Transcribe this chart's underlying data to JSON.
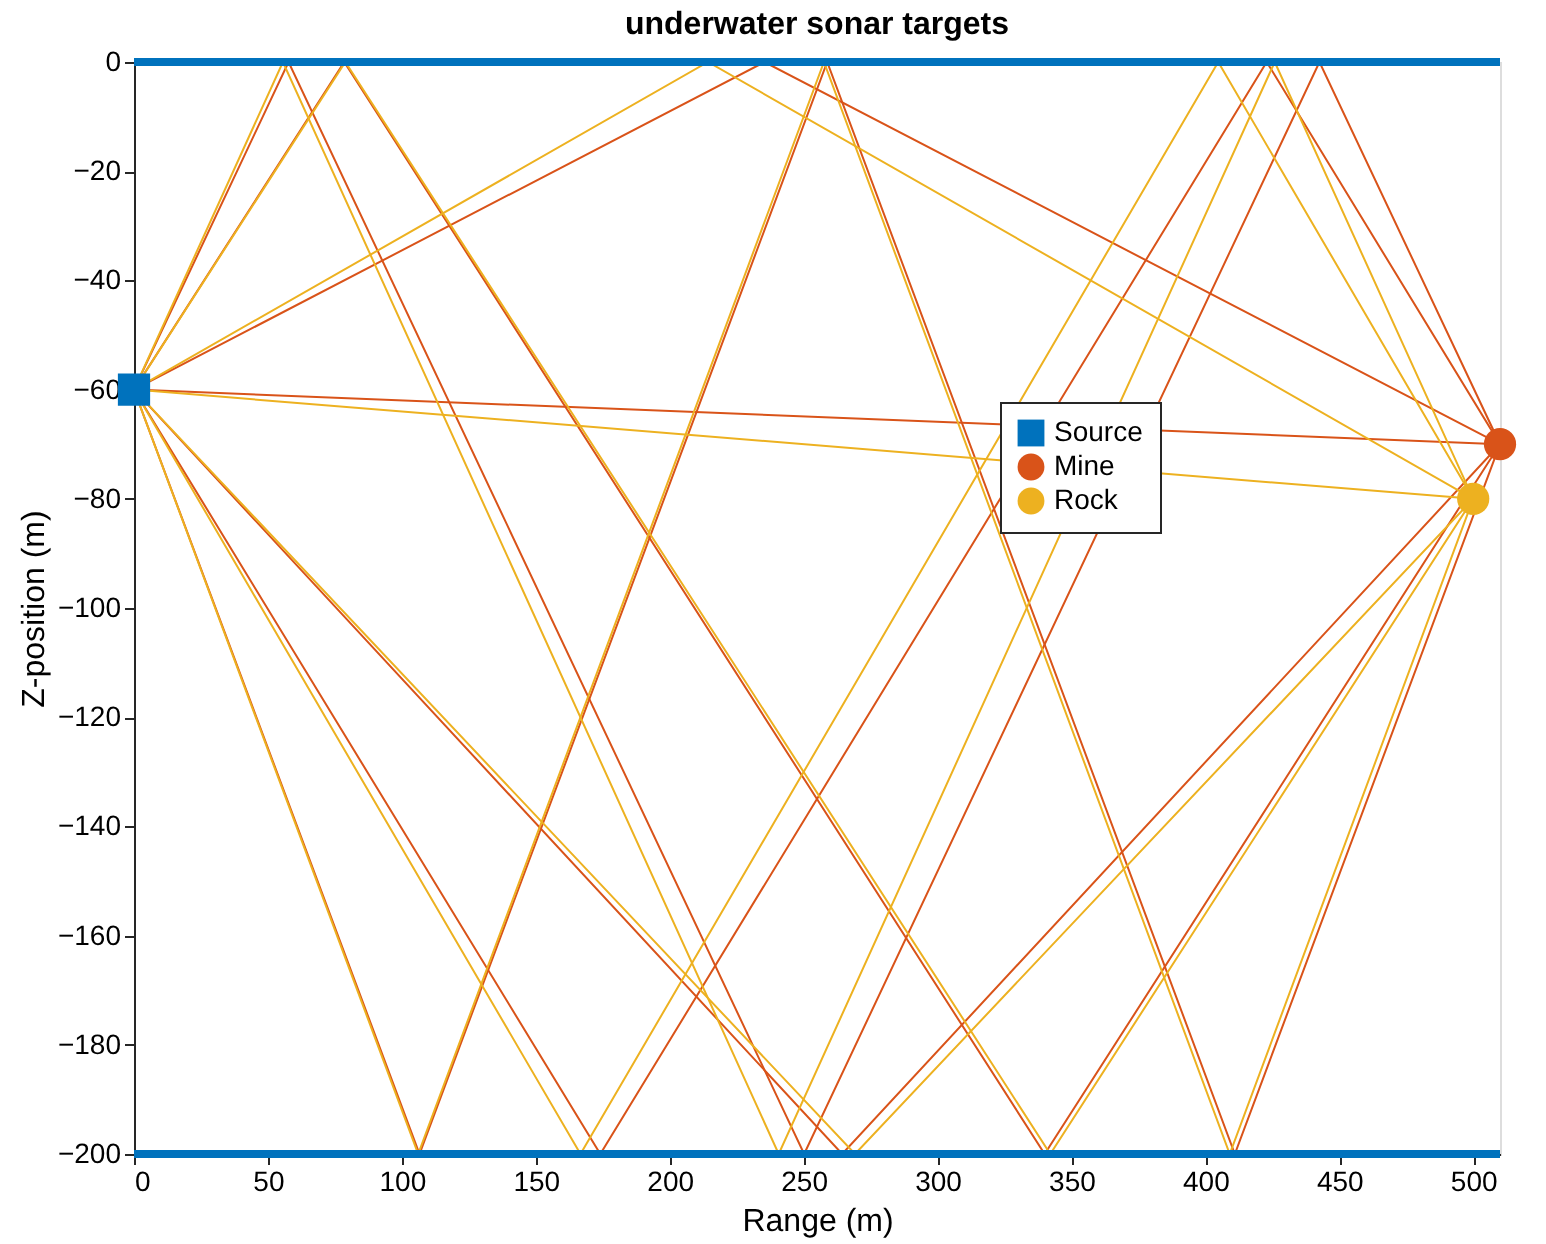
{
  "chart_data": {
    "type": "line",
    "title": "underwater sonar targets",
    "xlabel": "Range (m)",
    "ylabel": "Z-position (m)",
    "xlim": [
      0,
      510
    ],
    "ylim": [
      -200,
      0
    ],
    "xticks": [
      0,
      50,
      100,
      150,
      200,
      250,
      300,
      350,
      400,
      450,
      500
    ],
    "yticks": [
      -200,
      -180,
      -160,
      -140,
      -120,
      -100,
      -80,
      -60,
      -40,
      -20,
      0
    ],
    "grid": false,
    "legend": "top right",
    "line_style": "solid",
    "ref_lines": [
      {
        "axis": "y",
        "value": 0,
        "color": "#0072bd"
      },
      {
        "axis": "y",
        "value": -200,
        "color": "#0072bd"
      }
    ],
    "series": [
      {
        "color": "#d95319",
        "x": [
          0,
          510
        ],
        "values": [
          -60,
          -70
        ]
      },
      {
        "color": "#d95319",
        "x": [
          0,
          235.4,
          510
        ],
        "values": [
          -60,
          0,
          -70
        ]
      },
      {
        "color": "#d95319",
        "x": [
          0,
          264.4,
          510
        ],
        "values": [
          -60,
          -200,
          -70
        ]
      },
      {
        "color": "#d95319",
        "x": [
          0,
          78.5,
          340,
          510
        ],
        "values": [
          -60,
          0,
          -200,
          -70
        ]
      },
      {
        "color": "#d95319",
        "x": [
          0,
          174.1,
          422.9,
          510
        ],
        "values": [
          -60,
          -200,
          0,
          -70
        ]
      },
      {
        "color": "#d95319",
        "x": [
          0,
          57.7,
          250.2,
          442.6,
          510
        ],
        "values": [
          -60,
          0,
          -200,
          0,
          -70
        ]
      },
      {
        "color": "#d95319",
        "x": [
          0,
          106.6,
          258.8,
          411,
          510
        ],
        "values": [
          -60,
          -200,
          0,
          -200,
          -70
        ]
      },
      {
        "color": "#edb120",
        "x": [
          0,
          500
        ],
        "values": [
          -60,
          -80
        ]
      },
      {
        "color": "#edb120",
        "x": [
          0,
          214.3,
          500
        ],
        "values": [
          -60,
          0,
          -80
        ]
      },
      {
        "color": "#edb120",
        "x": [
          0,
          269.2,
          500
        ],
        "values": [
          -60,
          -200,
          -80
        ]
      },
      {
        "color": "#edb120",
        "x": [
          0,
          78.9,
          342.1,
          500
        ],
        "values": [
          -60,
          0,
          -200,
          -80
        ]
      },
      {
        "color": "#edb120",
        "x": [
          0,
          166.7,
          404.8,
          500
        ],
        "values": [
          -60,
          -200,
          0,
          -80
        ]
      },
      {
        "color": "#edb120",
        "x": [
          0,
          55.6,
          240.7,
          425.9,
          500
        ],
        "values": [
          -60,
          0,
          -200,
          0,
          -80
        ]
      },
      {
        "color": "#edb120",
        "x": [
          0,
          106.1,
          257.6,
          409.1,
          500
        ],
        "values": [
          -60,
          -200,
          0,
          -200,
          -80
        ]
      },
      {
        "type": "scatter",
        "name": "Source",
        "color": "#0072bd",
        "marker": "square",
        "x": [
          0
        ],
        "values": [
          -60
        ]
      },
      {
        "type": "scatter",
        "name": "Mine",
        "color": "#d95319",
        "marker": "circle",
        "x": [
          510
        ],
        "values": [
          -70
        ]
      },
      {
        "type": "scatter",
        "name": "Rock",
        "color": "#edb120",
        "marker": "circle",
        "x": [
          500
        ],
        "values": [
          -80
        ]
      }
    ]
  }
}
